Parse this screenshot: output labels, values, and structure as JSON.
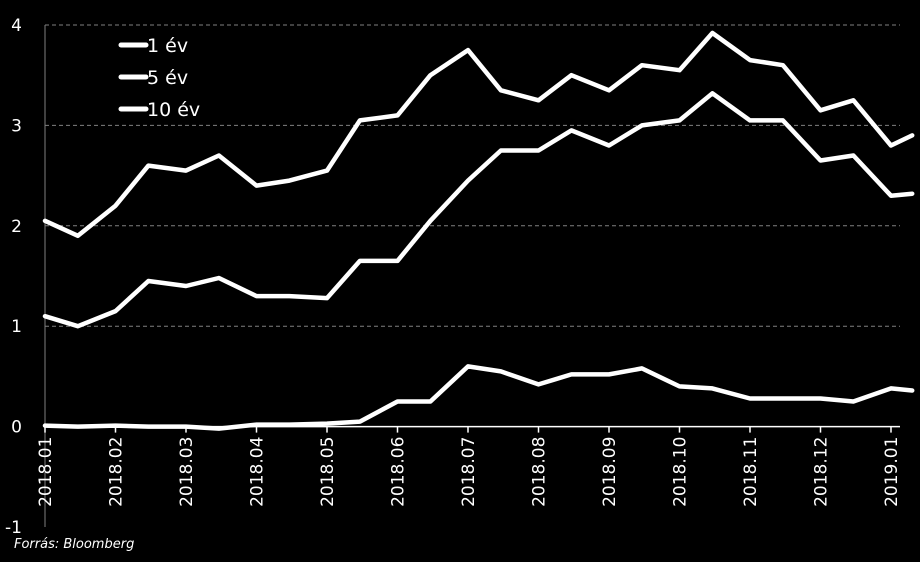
{
  "source_note": "Forrás: Bloomberg",
  "colors": {
    "background": "#000000",
    "line": "#ffffff",
    "grid": "#808080"
  },
  "chart_data": {
    "type": "line",
    "title": "",
    "xlabel": "",
    "ylabel": "",
    "ylim": [
      -1,
      4
    ],
    "yticks": [
      "-1",
      "0",
      "1",
      "2",
      "3",
      "4"
    ],
    "grid": "horizontal dashed",
    "legend_position": "top-left",
    "x_ticks": [
      "2018.01",
      "2018.02",
      "2018.03",
      "2018.04",
      "2018.05",
      "2018.06",
      "2018.07",
      "2018.08",
      "2018.09",
      "2018.10",
      "2018.11",
      "2018.12",
      "2019.01"
    ],
    "series": [
      {
        "name": "1 év",
        "x": [
          "2018.01",
          "2018.01.15",
          "2018.02",
          "2018.02.15",
          "2018.03",
          "2018.03.15",
          "2018.04",
          "2018.04.15",
          "2018.05",
          "2018.05.15",
          "2018.06",
          "2018.06.15",
          "2018.07",
          "2018.07.15",
          "2018.08",
          "2018.08.15",
          "2018.09",
          "2018.09.15",
          "2018.10",
          "2018.10.15",
          "2018.11",
          "2018.11.15",
          "2018.12",
          "2018.12.15",
          "2019.01",
          "2019.01.10"
        ],
        "values": [
          0.01,
          0.0,
          0.01,
          0.0,
          0.0,
          -0.02,
          0.02,
          0.02,
          0.03,
          0.05,
          0.25,
          0.25,
          0.6,
          0.55,
          0.42,
          0.52,
          0.52,
          0.58,
          0.4,
          0.38,
          0.28,
          0.28,
          0.28,
          0.25,
          0.38,
          0.36
        ]
      },
      {
        "name": "5 év",
        "x": [
          "2018.01",
          "2018.01.15",
          "2018.02",
          "2018.02.15",
          "2018.03",
          "2018.03.15",
          "2018.04",
          "2018.04.15",
          "2018.05",
          "2018.05.15",
          "2018.06",
          "2018.06.15",
          "2018.07",
          "2018.07.15",
          "2018.08",
          "2018.08.15",
          "2018.09",
          "2018.09.15",
          "2018.10",
          "2018.10.15",
          "2018.11",
          "2018.11.15",
          "2018.12",
          "2018.12.15",
          "2019.01",
          "2019.01.10"
        ],
        "values": [
          1.1,
          1.0,
          1.15,
          1.45,
          1.4,
          1.48,
          1.3,
          1.3,
          1.28,
          1.65,
          1.65,
          2.05,
          2.45,
          2.75,
          2.75,
          2.95,
          2.8,
          3.0,
          3.05,
          3.32,
          3.05,
          3.05,
          2.65,
          2.7,
          2.3,
          2.32
        ]
      },
      {
        "name": "10 év",
        "x": [
          "2018.01",
          "2018.01.15",
          "2018.02",
          "2018.02.15",
          "2018.03",
          "2018.03.15",
          "2018.04",
          "2018.04.15",
          "2018.05",
          "2018.05.15",
          "2018.06",
          "2018.06.15",
          "2018.07",
          "2018.07.15",
          "2018.08",
          "2018.08.15",
          "2018.09",
          "2018.09.15",
          "2018.10",
          "2018.10.15",
          "2018.11",
          "2018.11.15",
          "2018.12",
          "2018.12.15",
          "2019.01",
          "2019.01.10"
        ],
        "values": [
          2.05,
          1.9,
          2.2,
          2.6,
          2.55,
          2.7,
          2.4,
          2.45,
          2.55,
          3.05,
          3.1,
          3.5,
          3.75,
          3.35,
          3.25,
          3.5,
          3.35,
          3.6,
          3.55,
          3.92,
          3.65,
          3.6,
          3.15,
          3.25,
          2.8,
          2.9
        ]
      }
    ]
  }
}
